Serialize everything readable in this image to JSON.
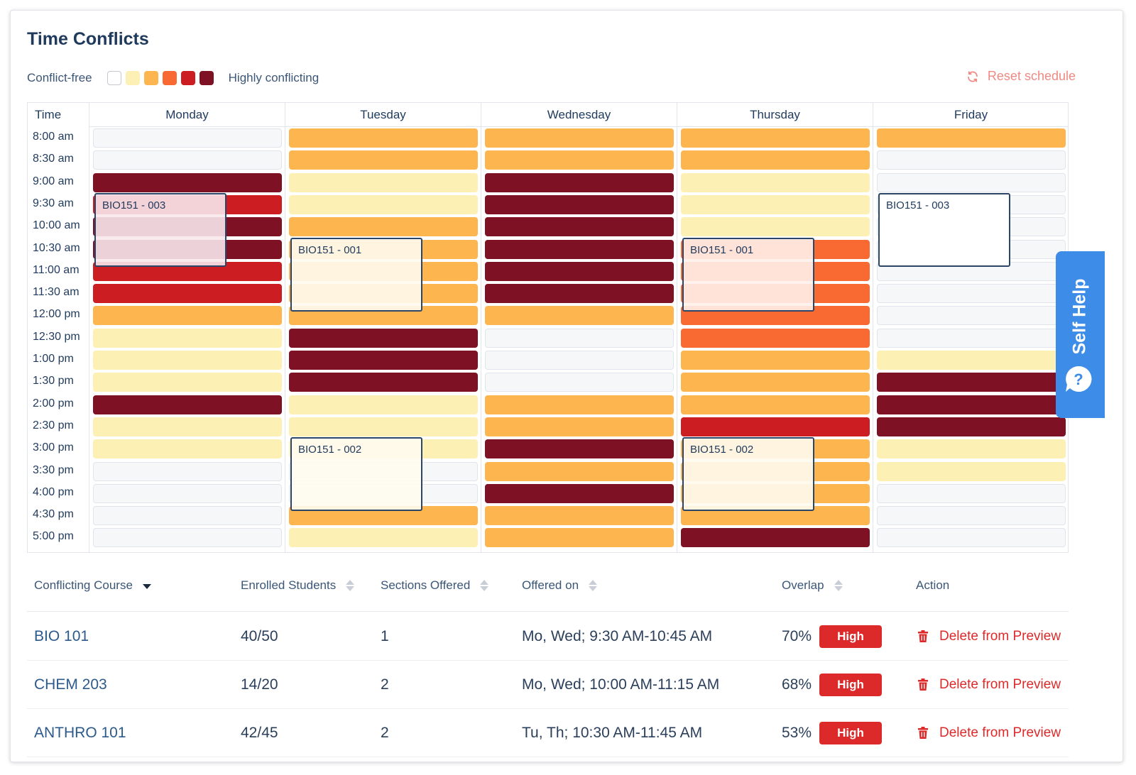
{
  "header": {
    "title": "Time Conflicts",
    "reset_label": "Reset schedule"
  },
  "legend": {
    "low_label": "Conflict-free",
    "high_label": "Highly conflicting",
    "colors": [
      "#ffffff",
      "#fdf0b4",
      "#fdb550",
      "#f96a32",
      "#cc1d22",
      "#7e1124"
    ]
  },
  "calendar": {
    "time_header": "Time",
    "times": [
      "8:00 am",
      "8:30 am",
      "9:00 am",
      "9:30 am",
      "10:00 am",
      "10:30 am",
      "11:00 am",
      "11:30 am",
      "12:00 pm",
      "12:30 pm",
      "1:00 pm",
      "1:30 pm",
      "2:00 pm",
      "2:30 pm",
      "3:00 pm",
      "3:30 pm",
      "4:00 pm",
      "4:30 pm",
      "5:00 pm"
    ],
    "days": [
      {
        "name": "Monday",
        "levels": [
          0,
          0,
          5,
          4,
          5,
          5,
          4,
          4,
          2,
          1,
          1,
          1,
          5,
          1,
          1,
          0,
          0,
          0,
          0
        ]
      },
      {
        "name": "Tuesday",
        "levels": [
          2,
          2,
          1,
          1,
          2,
          2,
          2,
          2,
          2,
          5,
          5,
          5,
          1,
          1,
          1,
          0,
          0,
          2,
          1
        ]
      },
      {
        "name": "Wednesday",
        "levels": [
          2,
          2,
          5,
          5,
          5,
          5,
          5,
          5,
          2,
          0,
          0,
          0,
          2,
          2,
          5,
          2,
          5,
          2,
          2
        ]
      },
      {
        "name": "Thursday",
        "levels": [
          2,
          2,
          1,
          1,
          1,
          3,
          3,
          3,
          3,
          3,
          2,
          2,
          2,
          4,
          2,
          2,
          2,
          2,
          5
        ]
      },
      {
        "name": "Friday",
        "levels": [
          2,
          0,
          0,
          0,
          0,
          0,
          0,
          0,
          0,
          0,
          1,
          5,
          5,
          5,
          1,
          1,
          0,
          0,
          0
        ]
      }
    ],
    "sections": [
      {
        "label": "BIO151 - 003",
        "day": 0,
        "start": 3
      },
      {
        "label": "BIO151 - 001",
        "day": 1,
        "start": 5
      },
      {
        "label": "BIO151 - 002",
        "day": 1,
        "start": 14
      },
      {
        "label": "BIO151 - 001",
        "day": 3,
        "start": 5
      },
      {
        "label": "BIO151 - 002",
        "day": 3,
        "start": 14
      },
      {
        "label": "BIO151 - 003",
        "day": 4,
        "start": 3
      }
    ]
  },
  "help": {
    "label": "Self Help"
  },
  "table": {
    "headers": {
      "course": "Conflicting Course",
      "enrolled": "Enrolled Students",
      "sections": "Sections Offered",
      "offered": "Offered on",
      "overlap": "Overlap",
      "action": "Action"
    },
    "rows": [
      {
        "course": "BIO 101",
        "enrolled": "40/50",
        "sections": "1",
        "offered": "Mo, Wed; 9:30 AM-10:45 AM",
        "overlap": "70%",
        "level": "High",
        "action": "Delete from Preview"
      },
      {
        "course": "CHEM 203",
        "enrolled": "14/20",
        "sections": "2",
        "offered": "Mo, Wed; 10:00 AM-11:15 AM",
        "overlap": "68%",
        "level": "High",
        "action": "Delete from Preview"
      },
      {
        "course": "ANTHRO 101",
        "enrolled": "42/45",
        "sections": "2",
        "offered": "Tu, Th; 10:30 AM-11:45 AM",
        "overlap": "53%",
        "level": "High",
        "action": "Delete from Preview"
      }
    ]
  }
}
